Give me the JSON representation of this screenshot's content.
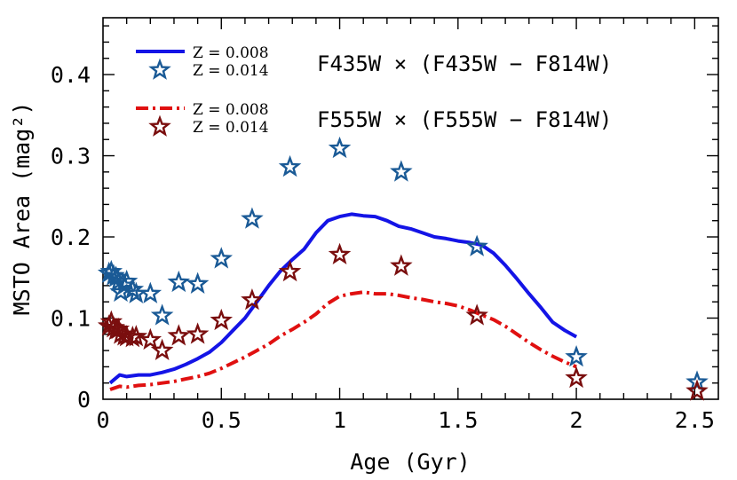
{
  "chart_data": {
    "type": "line",
    "xlabel": "Age (Gyr)",
    "ylabel": "MSTO Area (mag²)",
    "xlim": [
      0,
      2.6
    ],
    "ylim": [
      0,
      0.47
    ],
    "xticks": [
      {
        "value": 0,
        "label": "0"
      },
      {
        "value": 0.5,
        "label": "0.5"
      },
      {
        "value": 1,
        "label": "1"
      },
      {
        "value": 1.5,
        "label": "1.5"
      },
      {
        "value": 2,
        "label": "2"
      },
      {
        "value": 2.5,
        "label": "2.5"
      }
    ],
    "yticks": [
      {
        "value": 0,
        "label": "0"
      },
      {
        "value": 0.1,
        "label": "0.1"
      },
      {
        "value": 0.2,
        "label": "0.2"
      },
      {
        "value": 0.3,
        "label": "0.3"
      },
      {
        "value": 0.4,
        "label": "0.4"
      }
    ],
    "annotations": [
      {
        "text": "F435W × (F435W − F814W)",
        "group": 1
      },
      {
        "text": "F555W × (F555W − F814W)",
        "group": 2
      }
    ],
    "series": [
      {
        "name": "Z = 0.008",
        "style": "line",
        "group": 1,
        "color": "#1414e6",
        "dash": "solid",
        "x": [
          0.03,
          0.07,
          0.1,
          0.15,
          0.2,
          0.25,
          0.3,
          0.35,
          0.4,
          0.45,
          0.5,
          0.55,
          0.6,
          0.65,
          0.7,
          0.75,
          0.8,
          0.85,
          0.9,
          0.95,
          1.0,
          1.05,
          1.1,
          1.15,
          1.2,
          1.25,
          1.3,
          1.35,
          1.4,
          1.45,
          1.5,
          1.55,
          1.6,
          1.65,
          1.7,
          1.75,
          1.8,
          1.85,
          1.9,
          1.95,
          2.0
        ],
        "y": [
          0.02,
          0.03,
          0.028,
          0.03,
          0.03,
          0.033,
          0.037,
          0.043,
          0.05,
          0.058,
          0.07,
          0.085,
          0.1,
          0.12,
          0.14,
          0.158,
          0.172,
          0.185,
          0.205,
          0.22,
          0.225,
          0.228,
          0.226,
          0.225,
          0.22,
          0.213,
          0.21,
          0.205,
          0.2,
          0.198,
          0.195,
          0.193,
          0.19,
          0.18,
          0.165,
          0.148,
          0.13,
          0.113,
          0.095,
          0.085,
          0.077
        ]
      },
      {
        "name": "Z = 0.014",
        "style": "star",
        "group": 1,
        "color": "#1a5a96",
        "x": [
          0.025,
          0.035,
          0.045,
          0.055,
          0.065,
          0.075,
          0.09,
          0.1,
          0.125,
          0.14,
          0.2,
          0.25,
          0.32,
          0.4,
          0.5,
          0.63,
          0.79,
          1.0,
          1.26,
          1.58,
          2.0,
          2.51
        ],
        "y": [
          0.155,
          0.157,
          0.152,
          0.15,
          0.145,
          0.132,
          0.14,
          0.145,
          0.135,
          0.13,
          0.13,
          0.103,
          0.144,
          0.142,
          0.173,
          0.222,
          0.286,
          0.309,
          0.28,
          0.188,
          0.052,
          0.021
        ]
      },
      {
        "name": "Z = 0.008",
        "style": "line",
        "group": 2,
        "color": "#e01010",
        "dash": "dashdot",
        "x": [
          0.03,
          0.07,
          0.1,
          0.15,
          0.2,
          0.25,
          0.3,
          0.35,
          0.4,
          0.45,
          0.5,
          0.55,
          0.6,
          0.65,
          0.7,
          0.75,
          0.8,
          0.85,
          0.9,
          0.95,
          1.0,
          1.05,
          1.1,
          1.15,
          1.2,
          1.25,
          1.3,
          1.35,
          1.4,
          1.45,
          1.5,
          1.55,
          1.6,
          1.65,
          1.7,
          1.75,
          1.8,
          1.85,
          1.9,
          1.95,
          2.0
        ],
        "y": [
          0.012,
          0.016,
          0.015,
          0.017,
          0.018,
          0.02,
          0.022,
          0.025,
          0.028,
          0.032,
          0.038,
          0.045,
          0.052,
          0.06,
          0.068,
          0.078,
          0.086,
          0.095,
          0.105,
          0.118,
          0.127,
          0.13,
          0.132,
          0.13,
          0.13,
          0.128,
          0.125,
          0.123,
          0.12,
          0.118,
          0.115,
          0.11,
          0.104,
          0.098,
          0.09,
          0.08,
          0.07,
          0.061,
          0.053,
          0.046,
          0.04
        ]
      },
      {
        "name": "Z = 0.014",
        "style": "star",
        "group": 2,
        "color": "#7a0e0e",
        "x": [
          0.025,
          0.035,
          0.045,
          0.055,
          0.065,
          0.075,
          0.09,
          0.1,
          0.125,
          0.14,
          0.2,
          0.25,
          0.32,
          0.4,
          0.5,
          0.63,
          0.79,
          1.0,
          1.26,
          1.58,
          2.0,
          2.51
        ],
        "y": [
          0.09,
          0.095,
          0.088,
          0.085,
          0.086,
          0.08,
          0.078,
          0.077,
          0.076,
          0.077,
          0.073,
          0.06,
          0.078,
          0.08,
          0.097,
          0.122,
          0.157,
          0.178,
          0.164,
          0.103,
          0.026,
          0.01
        ]
      }
    ]
  }
}
